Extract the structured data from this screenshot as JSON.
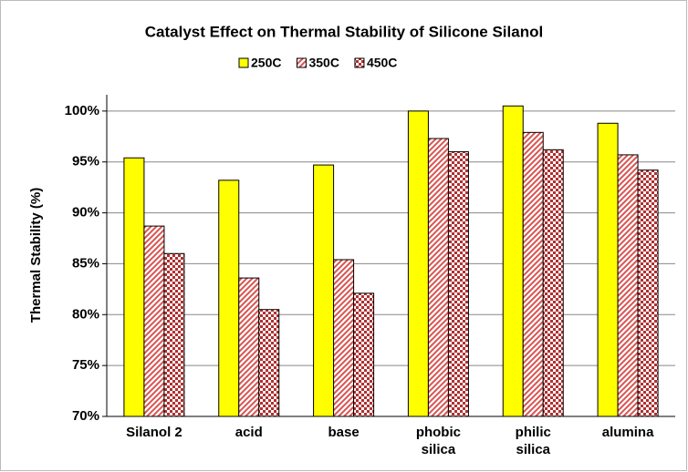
{
  "chart_data": {
    "type": "bar",
    "title": "Catalyst Effect on Thermal Stability of Silicone Silanol",
    "y_label": "Thermal Stability (%)",
    "categories": [
      "Silanol 2",
      "acid",
      "base",
      "phobic silica",
      "philic silica",
      "alumina"
    ],
    "series": [
      {
        "name": "250C",
        "color": "#ffff00",
        "pattern": "solid",
        "values": [
          95.4,
          93.2,
          94.7,
          100.0,
          100.5,
          98.8
        ]
      },
      {
        "name": "350C",
        "color": "#d9534f",
        "pattern": "hatch",
        "values": [
          88.7,
          83.6,
          85.4,
          97.3,
          97.9,
          95.7
        ]
      },
      {
        "name": "450C",
        "color": "#b03030",
        "pattern": "check",
        "values": [
          86.0,
          80.5,
          82.1,
          96.0,
          96.2,
          94.2
        ]
      }
    ],
    "ylim": [
      70,
      101.6
    ],
    "yticks": [
      {
        "value": 70,
        "label": "70%"
      },
      {
        "value": 75,
        "label": "75%"
      },
      {
        "value": 80,
        "label": "80%"
      },
      {
        "value": 85,
        "label": "85%"
      },
      {
        "value": 90,
        "label": "90%"
      },
      {
        "value": 95,
        "label": "95%"
      },
      {
        "value": 100,
        "label": "100%"
      }
    ],
    "grid": true,
    "legend": "top"
  }
}
